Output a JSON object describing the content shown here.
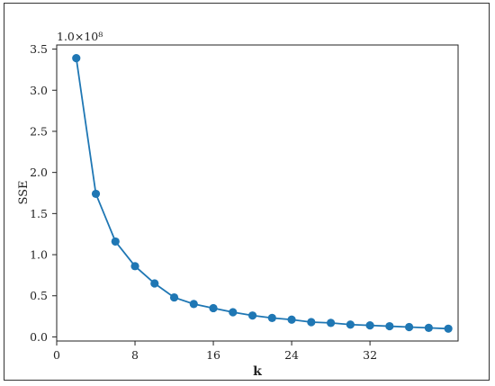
{
  "chart_data": {
    "type": "line",
    "title": "",
    "xlabel": "k",
    "ylabel": "SSE",
    "y_offset_text": "1.0×10⁸",
    "xlim": [
      0,
      41
    ],
    "ylim": [
      -0.05,
      3.55
    ],
    "xticks": [
      0,
      8,
      16,
      24,
      32
    ],
    "yticks": [
      "0.0",
      "0.5",
      "1.0",
      "1.5",
      "2.0",
      "2.5",
      "3.0",
      "3.5"
    ],
    "grid": false,
    "color": "#1f77b4",
    "series": [
      {
        "x": [
          2,
          4,
          6,
          8,
          10,
          12,
          14,
          16,
          18,
          20,
          22,
          24,
          26,
          28,
          30,
          32,
          34,
          36,
          38,
          40
        ],
        "y": [
          3.39,
          1.74,
          1.16,
          0.86,
          0.65,
          0.48,
          0.4,
          0.35,
          0.3,
          0.26,
          0.23,
          0.21,
          0.18,
          0.17,
          0.15,
          0.14,
          0.13,
          0.12,
          0.11,
          0.1
        ]
      }
    ]
  }
}
